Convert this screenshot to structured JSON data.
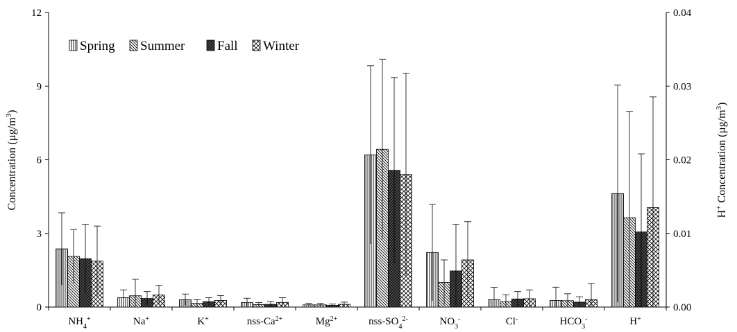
{
  "chart_data": {
    "type": "bar",
    "categories": [
      "NH4+",
      "Na+",
      "K+",
      "nss-Ca2+",
      "Mg2+",
      "nss-SO42-",
      "NO3-",
      "Cl-",
      "HCO3-",
      "H+"
    ],
    "category_labels": [
      {
        "base": "NH",
        "sub": "4",
        "sup": "+"
      },
      {
        "base": "Na",
        "sub": "",
        "sup": "+"
      },
      {
        "base": "K",
        "sub": "",
        "sup": "+"
      },
      {
        "base": "nss-Ca",
        "sub": "",
        "sup": "2+"
      },
      {
        "base": "Mg",
        "sub": "",
        "sup": "2+"
      },
      {
        "base": "nss-SO",
        "sub": "4",
        "sup": "2-"
      },
      {
        "base": "NO",
        "sub": "3",
        "sup": "-"
      },
      {
        "base": "Cl",
        "sub": "",
        "sup": "-"
      },
      {
        "base": "HCO",
        "sub": "3",
        "sup": "-"
      },
      {
        "base": "H",
        "sub": "",
        "sup": "+"
      }
    ],
    "series": [
      {
        "name": "Spring",
        "pattern": "vertical",
        "values": [
          2.37,
          0.38,
          0.3,
          0.18,
          0.09,
          6.2,
          2.22,
          0.3,
          0.27,
          4.62
        ],
        "error": [
          1.47,
          0.32,
          0.23,
          0.18,
          0.06,
          3.63,
          1.97,
          0.5,
          0.54,
          4.42
        ]
      },
      {
        "name": "Summer",
        "pattern": "diagonal",
        "values": [
          2.07,
          0.46,
          0.15,
          0.1,
          0.09,
          6.43,
          1.0,
          0.22,
          0.26,
          3.64
        ],
        "error": [
          1.09,
          0.67,
          0.15,
          0.08,
          0.06,
          3.67,
          0.92,
          0.28,
          0.28,
          4.33
        ]
      },
      {
        "name": "Fall",
        "pattern": "dark",
        "values": [
          1.97,
          0.35,
          0.22,
          0.11,
          0.07,
          5.57,
          1.47,
          0.33,
          0.2,
          3.06
        ],
        "error": [
          1.4,
          0.28,
          0.16,
          0.11,
          0.05,
          3.78,
          1.9,
          0.3,
          0.22,
          3.18
        ]
      },
      {
        "name": "Winter",
        "pattern": "crosshatch",
        "values": [
          1.87,
          0.49,
          0.27,
          0.19,
          0.11,
          5.4,
          1.92,
          0.34,
          0.3,
          4.05
        ],
        "error": [
          1.43,
          0.39,
          0.2,
          0.19,
          0.09,
          4.12,
          1.56,
          0.36,
          0.66,
          4.51
        ]
      }
    ],
    "ylabel": "Concentration (µg/m3)",
    "ylabel_parts": {
      "pre": "Concentration (µg/m",
      "sup": "3",
      "post": ")"
    },
    "y2label_parts": {
      "pre_sup": "+",
      "pre": "H",
      "mid": " Concentration (µg/m",
      "sup": "3",
      "post": ")"
    },
    "ylim": [
      0,
      12
    ],
    "y2lim": [
      0,
      0.04
    ],
    "yticks": [
      "0",
      "3",
      "6",
      "9",
      "12"
    ],
    "y2ticks": [
      "0.00",
      "0.01",
      "0.02",
      "0.03",
      "0.04"
    ],
    "y2_applies_to": "H+",
    "legend_placement": "top-left",
    "grid": false
  }
}
